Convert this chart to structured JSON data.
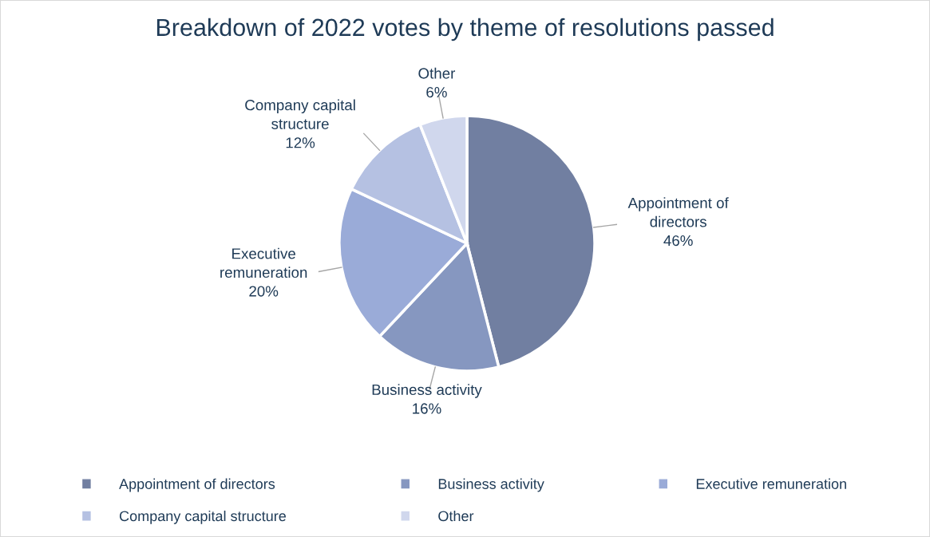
{
  "chart_data": {
    "type": "pie",
    "title": "Breakdown of 2022 votes by theme of resolutions passed",
    "categories": [
      "Appointment of directors",
      "Business activity",
      "Executive remuneration",
      "Company capital structure",
      "Other"
    ],
    "values": [
      46,
      16,
      20,
      12,
      6
    ],
    "value_labels": [
      "46%",
      "16%",
      "20%",
      "12%",
      "6%"
    ],
    "colors": [
      "#717fa1",
      "#8697c0",
      "#9aabd8",
      "#b5c1e2",
      "#d0d7ed"
    ],
    "legend": "bottom"
  }
}
